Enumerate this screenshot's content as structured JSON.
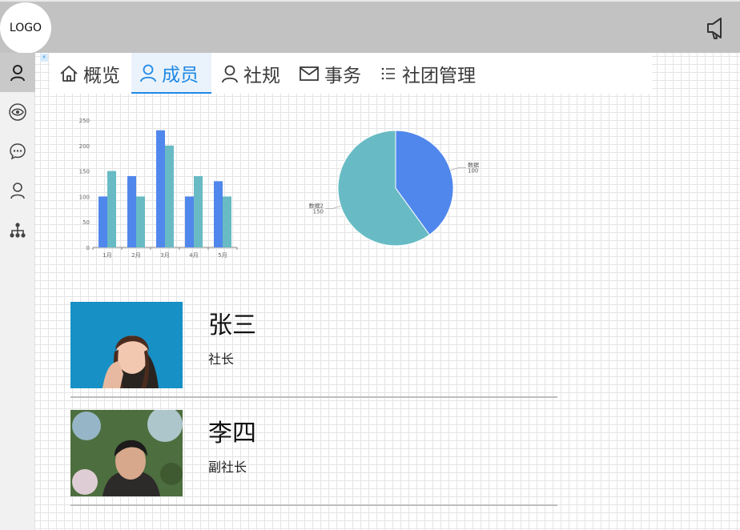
{
  "header": {
    "logo_text": "LOGO",
    "notice_icon": "megaphone-icon"
  },
  "sidebar": {
    "items": [
      {
        "name": "user-icon",
        "active": true
      },
      {
        "name": "eye-icon",
        "active": false
      },
      {
        "name": "chat-icon",
        "active": false
      },
      {
        "name": "person-icon",
        "active": false
      },
      {
        "name": "org-tree-icon",
        "active": false
      }
    ]
  },
  "tabs": [
    {
      "label": "概览",
      "icon": "home-icon",
      "active": false
    },
    {
      "label": "成员",
      "icon": "user-icon",
      "active": true
    },
    {
      "label": "社规",
      "icon": "user-icon",
      "active": false
    },
    {
      "label": "事务",
      "icon": "mail-icon",
      "active": false
    },
    {
      "label": "社团管理",
      "icon": "list-icon",
      "active": false
    }
  ],
  "chart_data": [
    {
      "type": "bar",
      "categories": [
        "1月",
        "2月",
        "3月",
        "4月",
        "5月"
      ],
      "series": [
        {
          "values": [
            100,
            140,
            230,
            100,
            130
          ],
          "color": "#5087ec"
        },
        {
          "values": [
            150,
            100,
            200,
            140,
            100
          ],
          "color": "#68bbc4"
        }
      ],
      "ylim": [
        0,
        250
      ],
      "yticks": [
        "0",
        "50",
        "100",
        "150",
        "200",
        "250"
      ]
    },
    {
      "type": "pie",
      "slices": [
        {
          "label": "数据",
          "value": 100,
          "color": "#5087ec"
        },
        {
          "label": "数据2",
          "value": 150,
          "color": "#68bbc4"
        }
      ]
    }
  ],
  "members": [
    {
      "name": "张三",
      "role": "社长"
    },
    {
      "name": "李四",
      "role": "副社长"
    }
  ]
}
